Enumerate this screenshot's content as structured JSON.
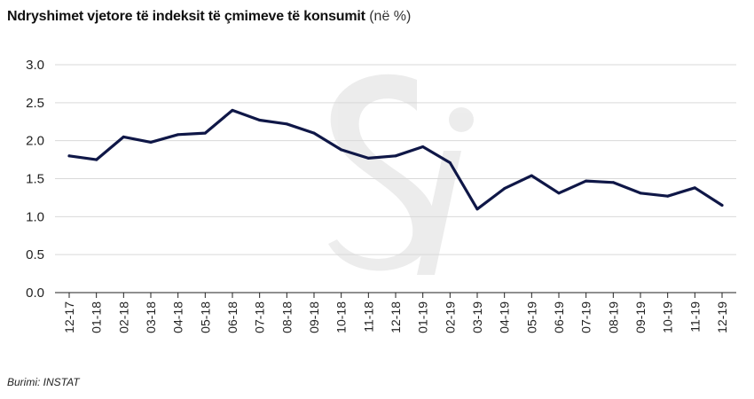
{
  "header": {
    "title": "Ndryshimet vjetore të indeksit të çmimeve të konsumit",
    "unit": "(në %)"
  },
  "footer": {
    "source": "Burimi: INSTAT"
  },
  "chart_data": {
    "type": "line",
    "title": "Ndryshimet vjetore të indeksit të çmimeve të konsumit (në %)",
    "xlabel": "",
    "ylabel": "",
    "ylim": [
      0,
      3.0
    ],
    "yticks": [
      "0.0",
      "0.5",
      "1.0",
      "1.5",
      "2.0",
      "2.5",
      "3.0"
    ],
    "grid": true,
    "legend": "none",
    "line_color": "#0f1747",
    "categories": [
      "12-17",
      "01-18",
      "02-18",
      "03-18",
      "04-18",
      "05-18",
      "06-18",
      "07-18",
      "08-18",
      "09-18",
      "10-18",
      "11-18",
      "12-18",
      "01-19",
      "02-19",
      "03-19",
      "04-19",
      "05-19",
      "06-19",
      "07-19",
      "08-19",
      "09-19",
      "10-19",
      "11-19",
      "12-19"
    ],
    "series": [
      {
        "values": [
          1.8,
          1.75,
          2.05,
          1.98,
          2.08,
          2.1,
          2.4,
          2.27,
          2.22,
          2.1,
          1.88,
          1.77,
          1.8,
          1.92,
          1.71,
          1.1,
          1.37,
          1.54,
          1.31,
          1.47,
          1.45,
          1.31,
          1.27,
          1.38,
          1.15
        ]
      }
    ]
  }
}
